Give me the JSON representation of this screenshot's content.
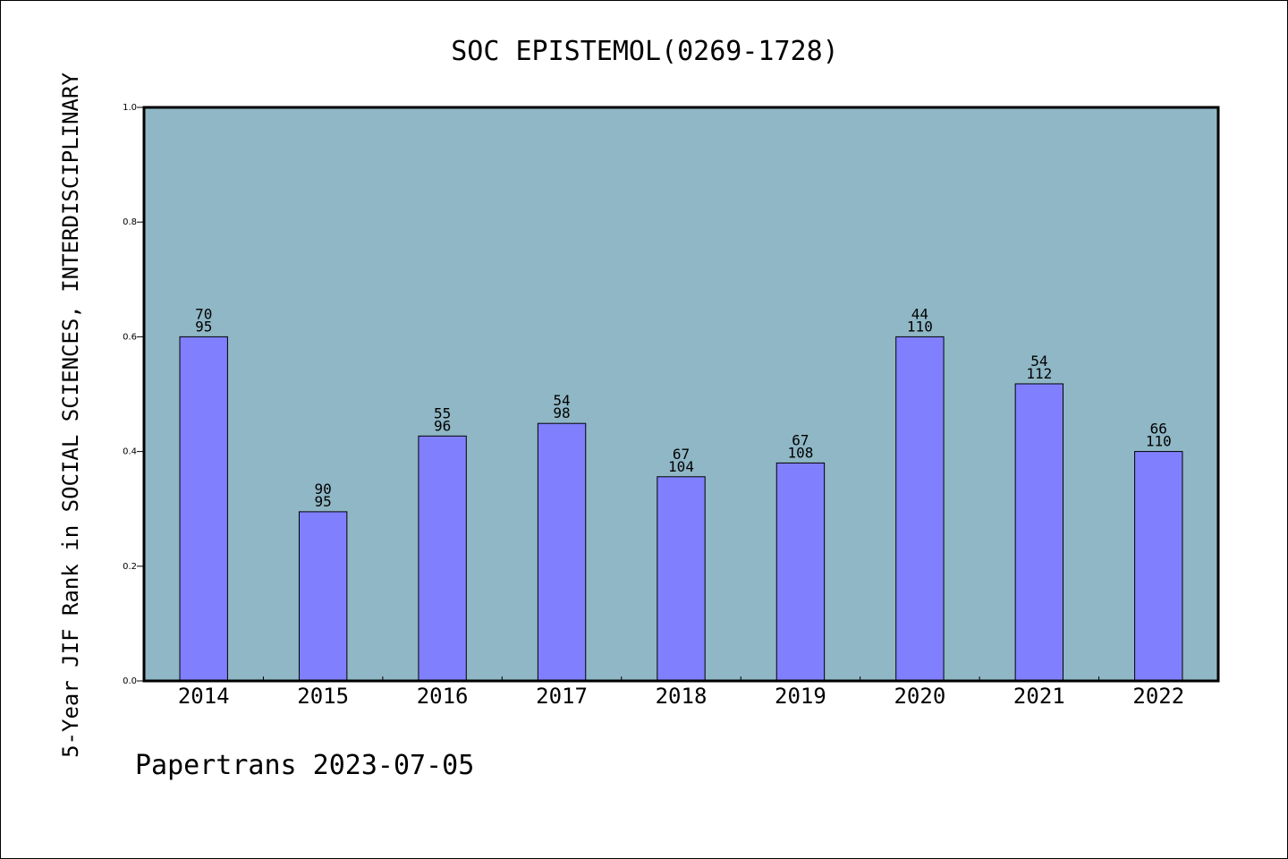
{
  "chart_data": {
    "type": "bar",
    "title": "SOC EPISTEMOL(0269-1728)",
    "ylabel": "5-Year JIF Rank in SOCIAL SCIENCES, INTERDISCIPLINARY",
    "xlabel": "",
    "footer": "Papertrans 2023-07-05",
    "categories": [
      "2014",
      "2015",
      "2016",
      "2017",
      "2018",
      "2019",
      "2020",
      "2021",
      "2022"
    ],
    "values": [
      0.6,
      0.295,
      0.427,
      0.449,
      0.356,
      0.38,
      0.6,
      0.518,
      0.4
    ],
    "rank": [
      "70",
      "90",
      "55",
      "54",
      "67",
      "67",
      "44",
      "54",
      "66"
    ],
    "total": [
      "95",
      "95",
      "96",
      "98",
      "104",
      "108",
      "110",
      "112",
      "110"
    ],
    "ylim": [
      0,
      1.0
    ],
    "yticks": [
      "0.0",
      "0.2",
      "0.4",
      "0.6",
      "0.8",
      "1.0"
    ],
    "grid": false,
    "legend": "none",
    "colors": {
      "plot_background": "#8fb7c5",
      "bar_fill": "#8080ff",
      "bar_stroke": "#000000"
    }
  }
}
